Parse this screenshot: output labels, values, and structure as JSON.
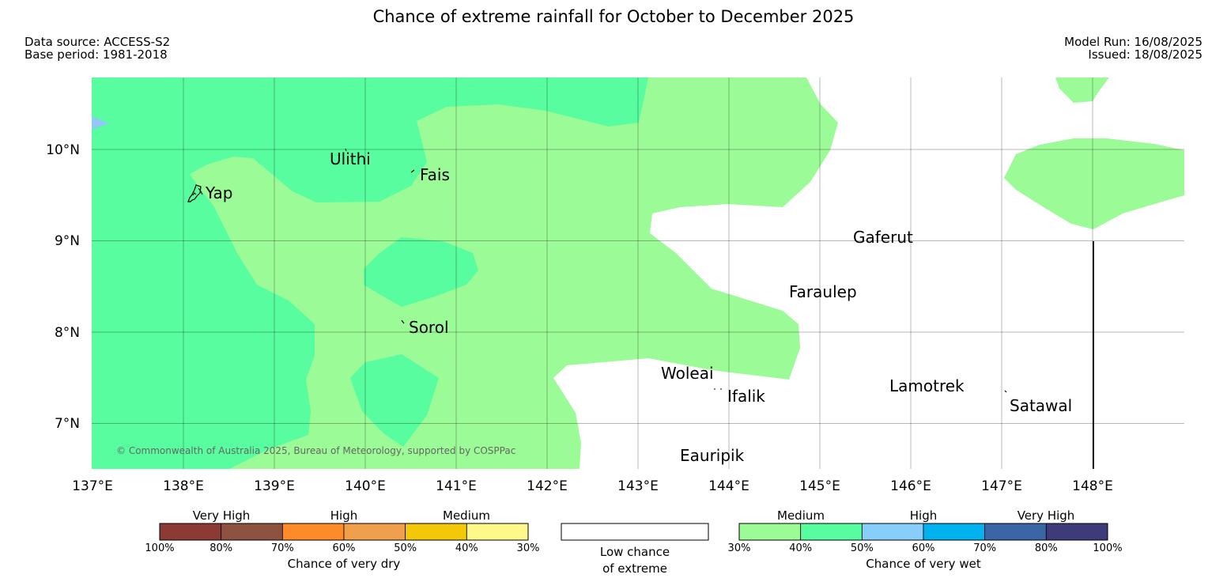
{
  "title": "Chance of extreme rainfall for October to December 2025",
  "meta": {
    "data_source": "Data source: ACCESS-S2",
    "base_period": "Base period: 1981-2018",
    "model_run": "Model Run: 16/08/2025",
    "issued": "Issued: 18/08/2025"
  },
  "map": {
    "lon_range": [
      137,
      149
    ],
    "lat_range": [
      6.5,
      10.8
    ],
    "lon_ticks": [
      "137°E",
      "138°E",
      "139°E",
      "140°E",
      "141°E",
      "142°E",
      "143°E",
      "144°E",
      "145°E",
      "146°E",
      "147°E",
      "148°E"
    ],
    "lat_ticks": [
      "10°N",
      "9°N",
      "8°N",
      "7°N"
    ],
    "places": [
      {
        "name": "Ulithi"
      },
      {
        "name": "Fais"
      },
      {
        "name": "Yap"
      },
      {
        "name": "Gaferut"
      },
      {
        "name": "Faraulep"
      },
      {
        "name": "Sorol"
      },
      {
        "name": "Woleai"
      },
      {
        "name": "Ifalik"
      },
      {
        "name": "Lamotrek"
      },
      {
        "name": "Satawal"
      },
      {
        "name": "Eauripik"
      }
    ],
    "copyright": "© Commonwealth of Australia 2025, Bureau of Meteorology, supported by COSPPac",
    "colors": {
      "wet_medium_30_40": "#9bfb96",
      "wet_medium_40_50": "#57fd9e",
      "wet_high_50_60": "#91c8f5"
    }
  },
  "legend": {
    "dry": {
      "categories": [
        "Very High",
        "High",
        "Medium"
      ],
      "colors": [
        "#8b3a34",
        "#8d5240",
        "#ff8a2a",
        "#f0a04c",
        "#f2c808",
        "#fff98c"
      ],
      "ticks": [
        "100%",
        "80%",
        "70%",
        "60%",
        "50%",
        "40%",
        "30%"
      ],
      "caption": "Chance of very dry"
    },
    "low": {
      "caption_line1": "Low chance",
      "caption_line2": "of extreme"
    },
    "wet": {
      "categories": [
        "Medium",
        "High",
        "Very High"
      ],
      "colors": [
        "#9bfb96",
        "#57fd9e",
        "#87cefa",
        "#00b2ee",
        "#3a66a6",
        "#3d3b7a"
      ],
      "ticks": [
        "30%",
        "40%",
        "50%",
        "60%",
        "70%",
        "80%",
        "100%"
      ],
      "caption": "Chance of very wet"
    }
  }
}
